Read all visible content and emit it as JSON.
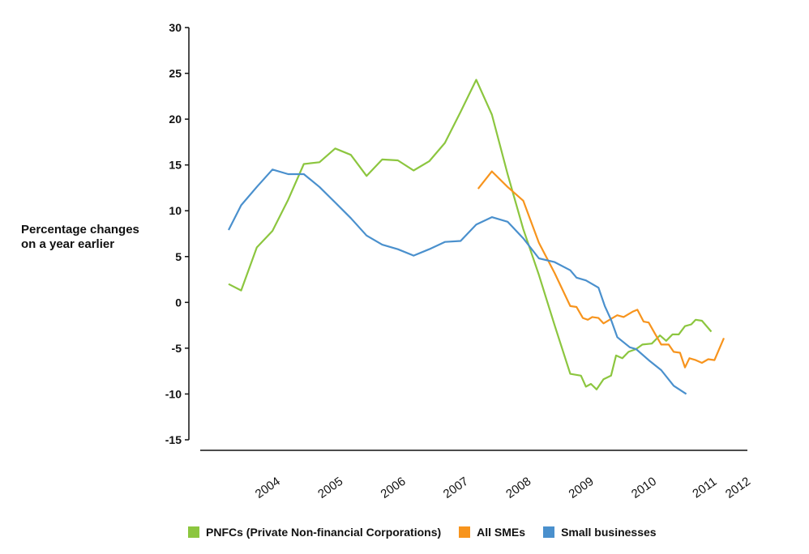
{
  "chart_data": {
    "type": "line",
    "ylabel": "Percentage changes\non a year earlier",
    "ylim": [
      -15,
      30
    ],
    "yticks": [
      -15,
      -10,
      -5,
      0,
      5,
      10,
      15,
      20,
      25,
      30
    ],
    "xlim": [
      2003.55,
      2012.4
    ],
    "xticks": [
      {
        "label": "2004",
        "x": 2004.0
      },
      {
        "label": "2005",
        "x": 2005.0
      },
      {
        "label": "2006",
        "x": 2006.0
      },
      {
        "label": "2007",
        "x": 2007.0
      },
      {
        "label": "2008",
        "x": 2008.0
      },
      {
        "label": "2009",
        "x": 2009.0
      },
      {
        "label": "2010",
        "x": 2010.0
      },
      {
        "label": "2011",
        "x": 2010.97
      },
      {
        "label": "2012",
        "x": 2011.5
      }
    ],
    "series": [
      {
        "name": "PNFCs (Private Non-financial Corporations)",
        "color": "#8cc63f",
        "points": [
          [
            2003.6,
            2.0
          ],
          [
            2003.8,
            1.3
          ],
          [
            2004.05,
            6.0
          ],
          [
            2004.3,
            7.8
          ],
          [
            2004.55,
            11.2
          ],
          [
            2004.8,
            15.1
          ],
          [
            2005.05,
            15.3
          ],
          [
            2005.3,
            16.8
          ],
          [
            2005.55,
            16.1
          ],
          [
            2005.8,
            13.8
          ],
          [
            2006.05,
            15.6
          ],
          [
            2006.3,
            15.5
          ],
          [
            2006.55,
            14.4
          ],
          [
            2006.8,
            15.4
          ],
          [
            2007.05,
            17.4
          ],
          [
            2007.3,
            20.8
          ],
          [
            2007.55,
            24.3
          ],
          [
            2007.8,
            20.5
          ],
          [
            2008.05,
            14.0
          ],
          [
            2008.3,
            8.0
          ],
          [
            2008.55,
            3.0
          ],
          [
            2008.8,
            -2.5
          ],
          [
            2009.05,
            -7.8
          ],
          [
            2009.22,
            -8.0
          ],
          [
            2009.3,
            -9.2
          ],
          [
            2009.38,
            -8.9
          ],
          [
            2009.47,
            -9.5
          ],
          [
            2009.58,
            -8.4
          ],
          [
            2009.7,
            -8.0
          ],
          [
            2009.78,
            -5.8
          ],
          [
            2009.88,
            -6.1
          ],
          [
            2009.98,
            -5.4
          ],
          [
            2010.1,
            -5.1
          ],
          [
            2010.2,
            -4.6
          ],
          [
            2010.35,
            -4.5
          ],
          [
            2010.48,
            -3.6
          ],
          [
            2010.58,
            -4.2
          ],
          [
            2010.68,
            -3.5
          ],
          [
            2010.78,
            -3.5
          ],
          [
            2010.88,
            -2.6
          ],
          [
            2010.98,
            -2.4
          ],
          [
            2011.05,
            -1.9
          ],
          [
            2011.15,
            -2.0
          ],
          [
            2011.3,
            -3.2
          ]
        ]
      },
      {
        "name": "All SMEs",
        "color": "#f7941d",
        "points": [
          [
            2007.58,
            12.4
          ],
          [
            2007.8,
            14.3
          ],
          [
            2008.05,
            12.6
          ],
          [
            2008.3,
            11.1
          ],
          [
            2008.55,
            6.5
          ],
          [
            2008.8,
            3.2
          ],
          [
            2009.05,
            -0.4
          ],
          [
            2009.15,
            -0.5
          ],
          [
            2009.25,
            -1.7
          ],
          [
            2009.33,
            -1.9
          ],
          [
            2009.4,
            -1.6
          ],
          [
            2009.5,
            -1.7
          ],
          [
            2009.58,
            -2.3
          ],
          [
            2009.7,
            -1.8
          ],
          [
            2009.8,
            -1.4
          ],
          [
            2009.9,
            -1.6
          ],
          [
            2010.05,
            -1.0
          ],
          [
            2010.12,
            -0.8
          ],
          [
            2010.22,
            -2.1
          ],
          [
            2010.3,
            -2.2
          ],
          [
            2010.4,
            -3.4
          ],
          [
            2010.5,
            -4.6
          ],
          [
            2010.62,
            -4.6
          ],
          [
            2010.7,
            -5.4
          ],
          [
            2010.8,
            -5.5
          ],
          [
            2010.88,
            -7.1
          ],
          [
            2010.95,
            -6.1
          ],
          [
            2011.05,
            -6.3
          ],
          [
            2011.15,
            -6.6
          ],
          [
            2011.25,
            -6.2
          ],
          [
            2011.35,
            -6.3
          ],
          [
            2011.5,
            -3.9
          ]
        ]
      },
      {
        "name": "Small businesses",
        "color": "#4a90cd",
        "points": [
          [
            2003.6,
            7.9
          ],
          [
            2003.8,
            10.6
          ],
          [
            2004.05,
            12.6
          ],
          [
            2004.3,
            14.5
          ],
          [
            2004.55,
            14.0
          ],
          [
            2004.8,
            14.0
          ],
          [
            2005.05,
            12.6
          ],
          [
            2005.3,
            10.9
          ],
          [
            2005.55,
            9.2
          ],
          [
            2005.8,
            7.3
          ],
          [
            2006.05,
            6.3
          ],
          [
            2006.3,
            5.8
          ],
          [
            2006.55,
            5.1
          ],
          [
            2006.8,
            5.8
          ],
          [
            2007.05,
            6.6
          ],
          [
            2007.3,
            6.7
          ],
          [
            2007.55,
            8.5
          ],
          [
            2007.8,
            9.3
          ],
          [
            2008.05,
            8.8
          ],
          [
            2008.3,
            7.0
          ],
          [
            2008.55,
            4.8
          ],
          [
            2008.8,
            4.4
          ],
          [
            2009.05,
            3.5
          ],
          [
            2009.15,
            2.7
          ],
          [
            2009.3,
            2.4
          ],
          [
            2009.5,
            1.6
          ],
          [
            2009.6,
            -0.4
          ],
          [
            2009.7,
            -1.9
          ],
          [
            2009.8,
            -3.8
          ],
          [
            2010.0,
            -4.9
          ],
          [
            2010.1,
            -5.1
          ],
          [
            2010.3,
            -6.3
          ],
          [
            2010.5,
            -7.4
          ],
          [
            2010.7,
            -9.1
          ],
          [
            2010.9,
            -10.0
          ]
        ]
      }
    ]
  }
}
